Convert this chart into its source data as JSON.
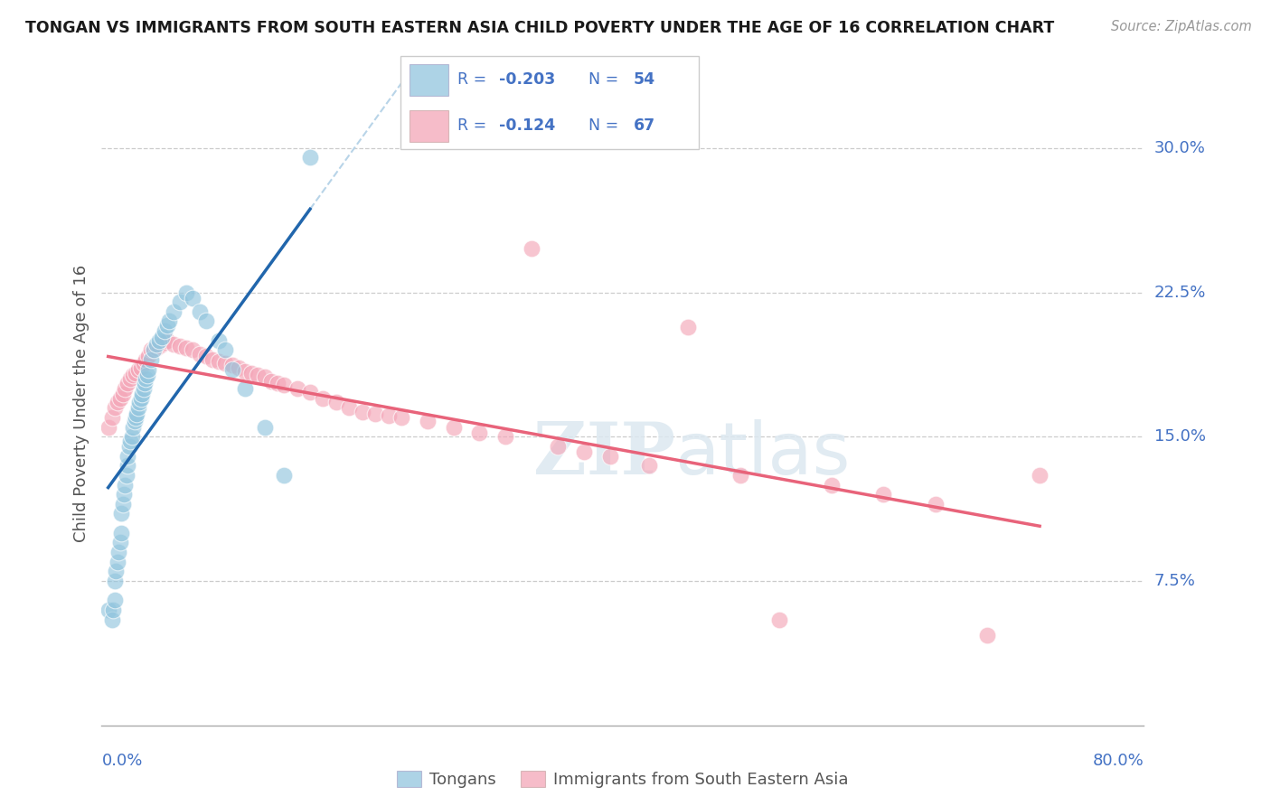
{
  "title": "TONGAN VS IMMIGRANTS FROM SOUTH EASTERN ASIA CHILD POVERTY UNDER THE AGE OF 16 CORRELATION CHART",
  "source": "Source: ZipAtlas.com",
  "ylabel": "Child Poverty Under the Age of 16",
  "ytick_values": [
    0.075,
    0.15,
    0.225,
    0.3
  ],
  "ytick_labels": [
    "7.5%",
    "15.0%",
    "22.5%",
    "30.0%"
  ],
  "xlim": [
    0.0,
    0.8
  ],
  "ylim": [
    0.0,
    0.335
  ],
  "blue_color": "#92c5de",
  "pink_color": "#f4a6b8",
  "blue_line_color": "#2166ac",
  "pink_line_color": "#e8637a",
  "dashed_line_color": "#b8d4e8",
  "watermark_zip": "ZIP",
  "watermark_atlas": "atlas",
  "blue_R": -0.203,
  "blue_N": 54,
  "pink_R": -0.124,
  "pink_N": 67,
  "legend_text_color": "#4472c4",
  "blue_x": [
    0.005,
    0.008,
    0.009,
    0.01,
    0.01,
    0.011,
    0.012,
    0.013,
    0.014,
    0.015,
    0.015,
    0.016,
    0.017,
    0.018,
    0.019,
    0.02,
    0.02,
    0.021,
    0.022,
    0.023,
    0.024,
    0.025,
    0.026,
    0.027,
    0.028,
    0.029,
    0.03,
    0.031,
    0.032,
    0.033,
    0.034,
    0.035,
    0.036,
    0.038,
    0.04,
    0.042,
    0.044,
    0.046,
    0.048,
    0.05,
    0.052,
    0.055,
    0.06,
    0.065,
    0.07,
    0.075,
    0.08,
    0.09,
    0.095,
    0.1,
    0.11,
    0.125,
    0.14,
    0.16
  ],
  "blue_y": [
    0.06,
    0.055,
    0.06,
    0.065,
    0.075,
    0.08,
    0.085,
    0.09,
    0.095,
    0.1,
    0.11,
    0.115,
    0.12,
    0.125,
    0.13,
    0.135,
    0.14,
    0.145,
    0.148,
    0.15,
    0.155,
    0.158,
    0.16,
    0.162,
    0.165,
    0.168,
    0.17,
    0.172,
    0.175,
    0.178,
    0.18,
    0.182,
    0.185,
    0.19,
    0.195,
    0.198,
    0.2,
    0.202,
    0.205,
    0.208,
    0.21,
    0.215,
    0.22,
    0.225,
    0.222,
    0.215,
    0.21,
    0.2,
    0.195,
    0.185,
    0.175,
    0.155,
    0.13,
    0.295
  ],
  "pink_x": [
    0.005,
    0.008,
    0.01,
    0.012,
    0.014,
    0.016,
    0.018,
    0.02,
    0.022,
    0.024,
    0.026,
    0.028,
    0.03,
    0.032,
    0.034,
    0.036,
    0.038,
    0.04,
    0.042,
    0.044,
    0.046,
    0.048,
    0.05,
    0.055,
    0.06,
    0.065,
    0.07,
    0.075,
    0.08,
    0.085,
    0.09,
    0.095,
    0.1,
    0.105,
    0.11,
    0.115,
    0.12,
    0.125,
    0.13,
    0.135,
    0.14,
    0.15,
    0.16,
    0.17,
    0.18,
    0.19,
    0.2,
    0.21,
    0.22,
    0.23,
    0.25,
    0.27,
    0.29,
    0.31,
    0.33,
    0.35,
    0.37,
    0.39,
    0.42,
    0.45,
    0.49,
    0.52,
    0.56,
    0.6,
    0.64,
    0.68,
    0.72
  ],
  "pink_y": [
    0.155,
    0.16,
    0.165,
    0.168,
    0.17,
    0.172,
    0.175,
    0.178,
    0.18,
    0.182,
    0.183,
    0.185,
    0.186,
    0.188,
    0.19,
    0.192,
    0.195,
    0.195,
    0.196,
    0.197,
    0.198,
    0.199,
    0.2,
    0.198,
    0.197,
    0.196,
    0.195,
    0.193,
    0.192,
    0.19,
    0.189,
    0.188,
    0.187,
    0.186,
    0.184,
    0.183,
    0.182,
    0.181,
    0.179,
    0.178,
    0.177,
    0.175,
    0.173,
    0.17,
    0.168,
    0.165,
    0.163,
    0.162,
    0.161,
    0.16,
    0.158,
    0.155,
    0.152,
    0.15,
    0.248,
    0.145,
    0.142,
    0.14,
    0.135,
    0.207,
    0.13,
    0.055,
    0.125,
    0.12,
    0.115,
    0.047,
    0.13
  ]
}
